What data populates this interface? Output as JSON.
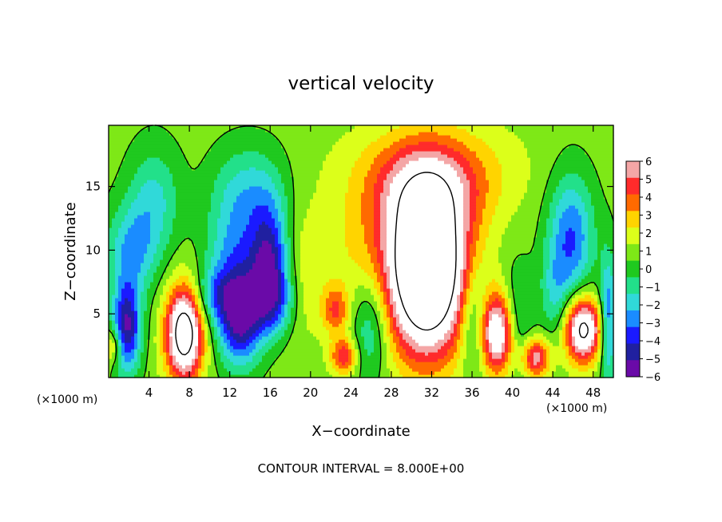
{
  "chart_data": {
    "type": "heatmap",
    "title": "vertical velocity",
    "xlabel": "X−coordinate",
    "ylabel": "Z−coordinate",
    "x_unit_left": "(×1000 m)",
    "x_unit_right": "(×1000 m)",
    "footer": "CONTOUR INTERVAL = 8.000E+00",
    "xlim": [
      0,
      50
    ],
    "ylim": [
      0,
      19.8
    ],
    "x_ticks": [
      4,
      8,
      12,
      16,
      20,
      24,
      28,
      32,
      36,
      40,
      44,
      48
    ],
    "x_tick_labels": [
      "4",
      "8",
      "12",
      "16",
      "20",
      "24",
      "28",
      "32",
      "36",
      "40",
      "44",
      "48"
    ],
    "y_ticks": [
      5,
      10,
      15
    ],
    "y_tick_labels": [
      "5",
      "10",
      "15"
    ],
    "colorbar": {
      "range": [
        -6,
        6
      ],
      "levels": [
        6,
        5,
        4,
        3,
        2,
        1,
        0,
        -1,
        -2,
        -3,
        -4,
        -5,
        -6
      ],
      "labels": [
        "6",
        "5",
        "4",
        "3",
        "2",
        "1",
        "0",
        "−1",
        "−2",
        "−3",
        "−4",
        "−5",
        "−6"
      ],
      "colors": [
        "#f4a6a6",
        "#ff2b2b",
        "#ff6a00",
        "#ffd400",
        "#dcff1a",
        "#7ee817",
        "#1fc91f",
        "#22e08a",
        "#30d9d9",
        "#1a8cff",
        "#1a1aff",
        "#2020a0",
        "#6a0aa8"
      ],
      "overflow_color": "#ffffff"
    },
    "features": [
      {
        "x": 7.5,
        "z": 3.5,
        "amp": 9.5,
        "sx": 1.3,
        "sz": 2.6
      },
      {
        "x": 31.5,
        "z": 8.5,
        "amp": 13,
        "sx": 2.8,
        "sz": 4.6
      },
      {
        "x": 31.5,
        "z": 14.5,
        "amp": 3.2,
        "sx": 4.5,
        "sz": 2.5
      },
      {
        "x": 32,
        "z": 17,
        "amp": 1.8,
        "sx": 6,
        "sz": 2.5
      },
      {
        "x": 47,
        "z": 3.8,
        "amp": 8.5,
        "sx": 1.3,
        "sz": 1.8
      },
      {
        "x": 38.5,
        "z": 3.5,
        "amp": 7.5,
        "sx": 1.2,
        "sz": 2.2
      },
      {
        "x": 42.3,
        "z": 1.6,
        "amp": 5.5,
        "sx": 1,
        "sz": 1.1
      },
      {
        "x": 23.3,
        "z": 1.7,
        "amp": 4.5,
        "sx": 0.9,
        "sz": 1
      },
      {
        "x": 22.5,
        "z": 5.3,
        "amp": 3.5,
        "sx": 0.9,
        "sz": 1.3
      },
      {
        "x": 18.5,
        "z": 8,
        "amp": 1.5,
        "sx": 2.5,
        "sz": 4
      },
      {
        "x": 25,
        "z": 10,
        "amp": 1.3,
        "sx": 2.5,
        "sz": 3
      },
      {
        "x": 0.5,
        "z": 2.5,
        "amp": 3,
        "sx": 0.6,
        "sz": 1
      },
      {
        "x": 1.8,
        "z": 4,
        "amp": -6.5,
        "sx": 1,
        "sz": 2.5
      },
      {
        "x": 2.3,
        "z": 10,
        "amp": -3.3,
        "sx": 1.8,
        "sz": 2.5
      },
      {
        "x": 4.5,
        "z": 14,
        "amp": -2.6,
        "sx": 1.8,
        "sz": 3
      },
      {
        "x": 13,
        "z": 4.5,
        "amp": -6,
        "sx": 1.5,
        "sz": 2.5
      },
      {
        "x": 12.5,
        "z": 9.5,
        "amp": -3.5,
        "sx": 2,
        "sz": 3.5
      },
      {
        "x": 16,
        "z": 9.5,
        "amp": -6,
        "sx": 1.4,
        "sz": 3.2
      },
      {
        "x": 16.3,
        "z": 6,
        "amp": -4,
        "sx": 1.5,
        "sz": 2
      },
      {
        "x": 14,
        "z": 15,
        "amp": -2.2,
        "sx": 2.5,
        "sz": 2.5
      },
      {
        "x": 26,
        "z": 4,
        "amp": -2.8,
        "sx": 1.3,
        "sz": 3
      },
      {
        "x": 36.2,
        "z": 4.5,
        "amp": -3,
        "sx": 1,
        "sz": 3
      },
      {
        "x": 40.5,
        "z": 4.5,
        "amp": -2.3,
        "sx": 1.1,
        "sz": 3
      },
      {
        "x": 45.8,
        "z": 11,
        "amp": -4.5,
        "sx": 1.6,
        "sz": 3.5
      },
      {
        "x": 49.5,
        "z": 4.5,
        "amp": -4.5,
        "sx": 0.6,
        "sz": 3.5
      },
      {
        "x": 44.2,
        "z": 6.5,
        "amp": -2,
        "sx": 1,
        "sz": 2.5
      },
      {
        "x": 10.5,
        "z": 6.5,
        "amp": -2.5,
        "sx": 1.5,
        "sz": 1.5
      }
    ]
  }
}
